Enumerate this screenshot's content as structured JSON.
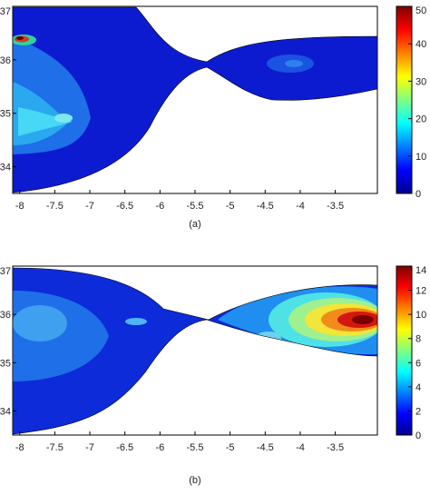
{
  "chart_data": [
    {
      "type": "heatmap",
      "caption": "(a)",
      "x_ticks": [
        "-8",
        "-7.5",
        "-7",
        "-6.5",
        "-6",
        "-5.5",
        "-5",
        "-4.5",
        "-4",
        "-3.5"
      ],
      "y_ticks": [
        "34",
        "35",
        "36",
        "37"
      ],
      "xlim": [
        -8.1,
        -2.9
      ],
      "ylim": [
        33.5,
        37
      ],
      "colorbar_ticks": [
        "0",
        "10",
        "20",
        "30",
        "40",
        "50"
      ],
      "colorbar_range": [
        0,
        50
      ],
      "grid": false,
      "hotspots": [
        {
          "x": -7.9,
          "y": 36.5,
          "value": 45
        },
        {
          "x": -7.7,
          "y": 35.0,
          "value": 18
        },
        {
          "x": -7.3,
          "y": 34.9,
          "value": 10
        },
        {
          "x": -4.3,
          "y": 35.9,
          "value": 6
        }
      ]
    },
    {
      "type": "heatmap",
      "caption": "(b)",
      "x_ticks": [
        "-8",
        "-7.5",
        "-7",
        "-6.5",
        "-6",
        "-5.5",
        "-5",
        "-4.5",
        "-4",
        "-3.5"
      ],
      "y_ticks": [
        "34",
        "35",
        "36",
        "37"
      ],
      "xlim": [
        -8.1,
        -2.9
      ],
      "ylim": [
        33.5,
        37
      ],
      "colorbar_ticks": [
        "0",
        "2",
        "4",
        "6",
        "8",
        "10",
        "12",
        "14"
      ],
      "colorbar_range": [
        0,
        14
      ],
      "grid": false,
      "hotspots": [
        {
          "x": -3.3,
          "y": 36.0,
          "value": 13
        },
        {
          "x": -4.6,
          "y": 35.7,
          "value": 5
        },
        {
          "x": -7.7,
          "y": 35.7,
          "value": 4
        }
      ]
    }
  ]
}
